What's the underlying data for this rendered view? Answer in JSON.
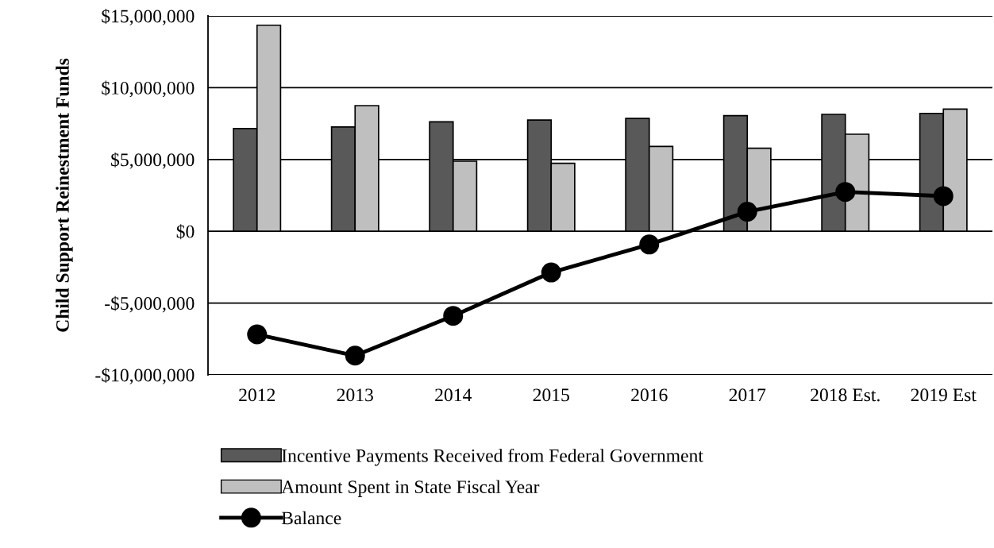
{
  "chart_data": {
    "type": "bar",
    "ylabel": "Child Support Reinestment Funds",
    "categories": [
      "2012",
      "2013",
      "2014",
      "2015",
      "2016",
      "2017",
      "2018 Est.",
      "2019 Est"
    ],
    "series": [
      {
        "name": "Incentive Payments Received from Federal Government",
        "color": "#595959",
        "values": [
          7150000,
          7260000,
          7620000,
          7750000,
          7860000,
          8050000,
          8140000,
          8210000
        ]
      },
      {
        "name": "Amount Spent in State Fiscal Year",
        "color": "#bfbfbf",
        "values": [
          14350000,
          8750000,
          4880000,
          4730000,
          5910000,
          5780000,
          6760000,
          8510000
        ]
      },
      {
        "name": "Balance",
        "type": "line",
        "color": "#000000",
        "marker": "circle",
        "values": [
          -7180000,
          -8660000,
          -5890000,
          -2870000,
          -920000,
          1360000,
          2740000,
          2450000
        ]
      }
    ],
    "ylim": [
      -10000000,
      15000000
    ],
    "yticks": [
      {
        "value": -10000000,
        "label": "-$10,000,000"
      },
      {
        "value": -5000000,
        "label": "-$5,000,000"
      },
      {
        "value": 0,
        "label": "$0"
      },
      {
        "value": 5000000,
        "label": "$5,000,000"
      },
      {
        "value": 10000000,
        "label": "$10,000,000"
      },
      {
        "value": 15000000,
        "label": "$15,000,000"
      }
    ],
    "grid": "y",
    "legend": "bottom"
  }
}
